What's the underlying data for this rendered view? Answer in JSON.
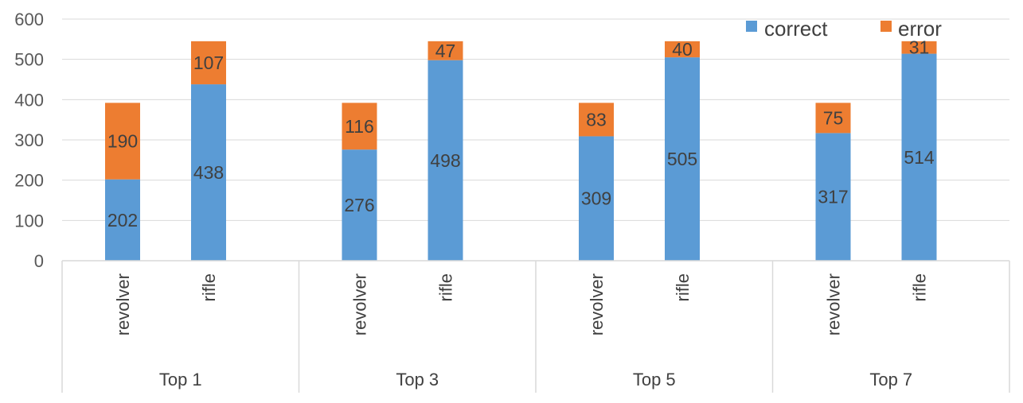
{
  "chart_data": {
    "type": "bar",
    "stacked": true,
    "groups": [
      "Top 1",
      "Top 3",
      "Top 5",
      "Top 7"
    ],
    "categories": [
      "revolver",
      "rifle"
    ],
    "series": [
      {
        "name": "correct",
        "color": "#5b9bd5",
        "values": [
          [
            202,
            438
          ],
          [
            276,
            498
          ],
          [
            309,
            505
          ],
          [
            317,
            514
          ]
        ]
      },
      {
        "name": "error",
        "color": "#ed7d31",
        "values": [
          [
            190,
            107
          ],
          [
            116,
            47
          ],
          [
            83,
            40
          ],
          [
            75,
            31
          ]
        ]
      }
    ],
    "yticks": [
      "0",
      "100",
      "200",
      "300",
      "400",
      "500",
      "600"
    ],
    "ylim": [
      0,
      600
    ],
    "grid": true,
    "legend": "top-right",
    "title": "",
    "xlabel": "",
    "ylabel": ""
  }
}
